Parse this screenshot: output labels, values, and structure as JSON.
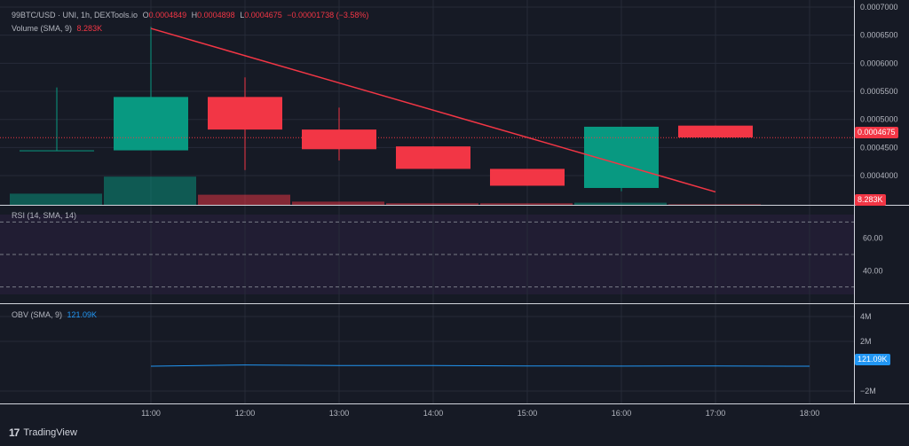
{
  "header": {
    "symbol": "99BTC/USD · UNI, 1h, DEXTools.io",
    "o_label": "O",
    "o_value": "0.0004849",
    "h_label": "H",
    "h_value": "0.0004898",
    "l_label": "L",
    "l_value": "0.0004675",
    "change": "−0.00001738 (−3.58%)"
  },
  "volume_legend": {
    "label": "Volume (SMA, 9)",
    "value": "8.283K"
  },
  "rsi_legend": {
    "label": "RSI (14, SMA, 14)"
  },
  "obv_legend": {
    "label": "OBV (SMA, 9)",
    "value": "121.09K"
  },
  "tags": {
    "price": "0.0004675",
    "volume": "8.283K",
    "obv": "121.09K"
  },
  "brand": {
    "logo": "17",
    "name": "TradingView"
  },
  "colors": {
    "up": "#089981",
    "down": "#f23645",
    "obv_line": "#2196f3",
    "trendline": "#f23645"
  },
  "chart_data": {
    "type": "candlestick",
    "x": [
      "10:00",
      "11:00",
      "12:00",
      "13:00",
      "14:00",
      "15:00",
      "16:00",
      "17:00",
      "18:00"
    ],
    "xticks": [
      "11:00",
      "12:00",
      "13:00",
      "14:00",
      "15:00",
      "16:00",
      "17:00",
      "18:00"
    ],
    "candles": [
      {
        "t": "10:00",
        "o": 0.000445,
        "h": 0.000557,
        "l": 0.000445,
        "c": 0.000445
      },
      {
        "t": "11:00",
        "o": 0.000445,
        "h": 0.000665,
        "l": 0.000445,
        "c": 0.00054
      },
      {
        "t": "12:00",
        "o": 0.00054,
        "h": 0.000575,
        "l": 0.00041,
        "c": 0.000482
      },
      {
        "t": "13:00",
        "o": 0.000482,
        "h": 0.000521,
        "l": 0.000427,
        "c": 0.000447
      },
      {
        "t": "14:00",
        "o": 0.000452,
        "h": 0.000452,
        "l": 0.000412,
        "c": 0.000412
      },
      {
        "t": "15:00",
        "o": 0.000412,
        "h": 0.000412,
        "l": 0.000382,
        "c": 0.000382
      },
      {
        "t": "16:00",
        "o": 0.000378,
        "h": 0.000487,
        "l": 0.000372,
        "c": 0.000487
      },
      {
        "t": "17:00",
        "o": 0.000489,
        "h": 0.000489,
        "l": 0.000468,
        "c": 0.000468
      }
    ],
    "price_axis": {
      "ylim": [
        0.000348,
        0.0007
      ],
      "ticks": [
        0.0004,
        0.00045,
        0.0005,
        0.00055,
        0.0006,
        0.00065,
        0.0007
      ],
      "tick_labels": [
        "0.0004000",
        "0.0004500",
        "0.0005000",
        "0.0005500",
        "0.0006000",
        "0.0006500",
        "0.0007000"
      ],
      "last_price": 0.0004675
    },
    "volume": {
      "values": [
        {
          "t": "10:00",
          "v": 0.21,
          "dir": "up"
        },
        {
          "t": "11:00",
          "v": 0.53,
          "dir": "up"
        },
        {
          "t": "12:00",
          "v": 0.19,
          "dir": "down"
        },
        {
          "t": "13:00",
          "v": 0.06,
          "dir": "down"
        },
        {
          "t": "14:00",
          "v": 0.03,
          "dir": "down"
        },
        {
          "t": "15:00",
          "v": 0.03,
          "dir": "down"
        },
        {
          "t": "16:00",
          "v": 0.04,
          "dir": "up"
        },
        {
          "t": "17:00",
          "v": 0.01,
          "dir": "down"
        }
      ],
      "ymax": 1.0
    },
    "trendline": {
      "start": {
        "x": "11:00",
        "y": 0.000662
      },
      "end": {
        "x": "17:00",
        "y": 0.000371
      }
    },
    "rsi": {
      "ylim": [
        20,
        80
      ],
      "ticks": [
        40,
        60
      ],
      "tick_labels": [
        "40.00",
        "60.00"
      ],
      "bands": [
        30,
        50,
        70
      ]
    },
    "obv": {
      "ylim": [
        -3,
        5
      ],
      "ticks": [
        -2,
        2,
        4
      ],
      "tick_labels": [
        "−2M",
        "2M",
        "4M"
      ],
      "points": [
        {
          "x": "11:00",
          "y": 0.0
        },
        {
          "x": "12:00",
          "y": 0.1
        },
        {
          "x": "13:00",
          "y": 0.05
        },
        {
          "x": "14:00",
          "y": 0.05
        },
        {
          "x": "15:00",
          "y": 0.02
        },
        {
          "x": "16:00",
          "y": 0.01
        },
        {
          "x": "17:00",
          "y": 0.02
        },
        {
          "x": "18:00",
          "y": 0.0
        }
      ]
    }
  }
}
